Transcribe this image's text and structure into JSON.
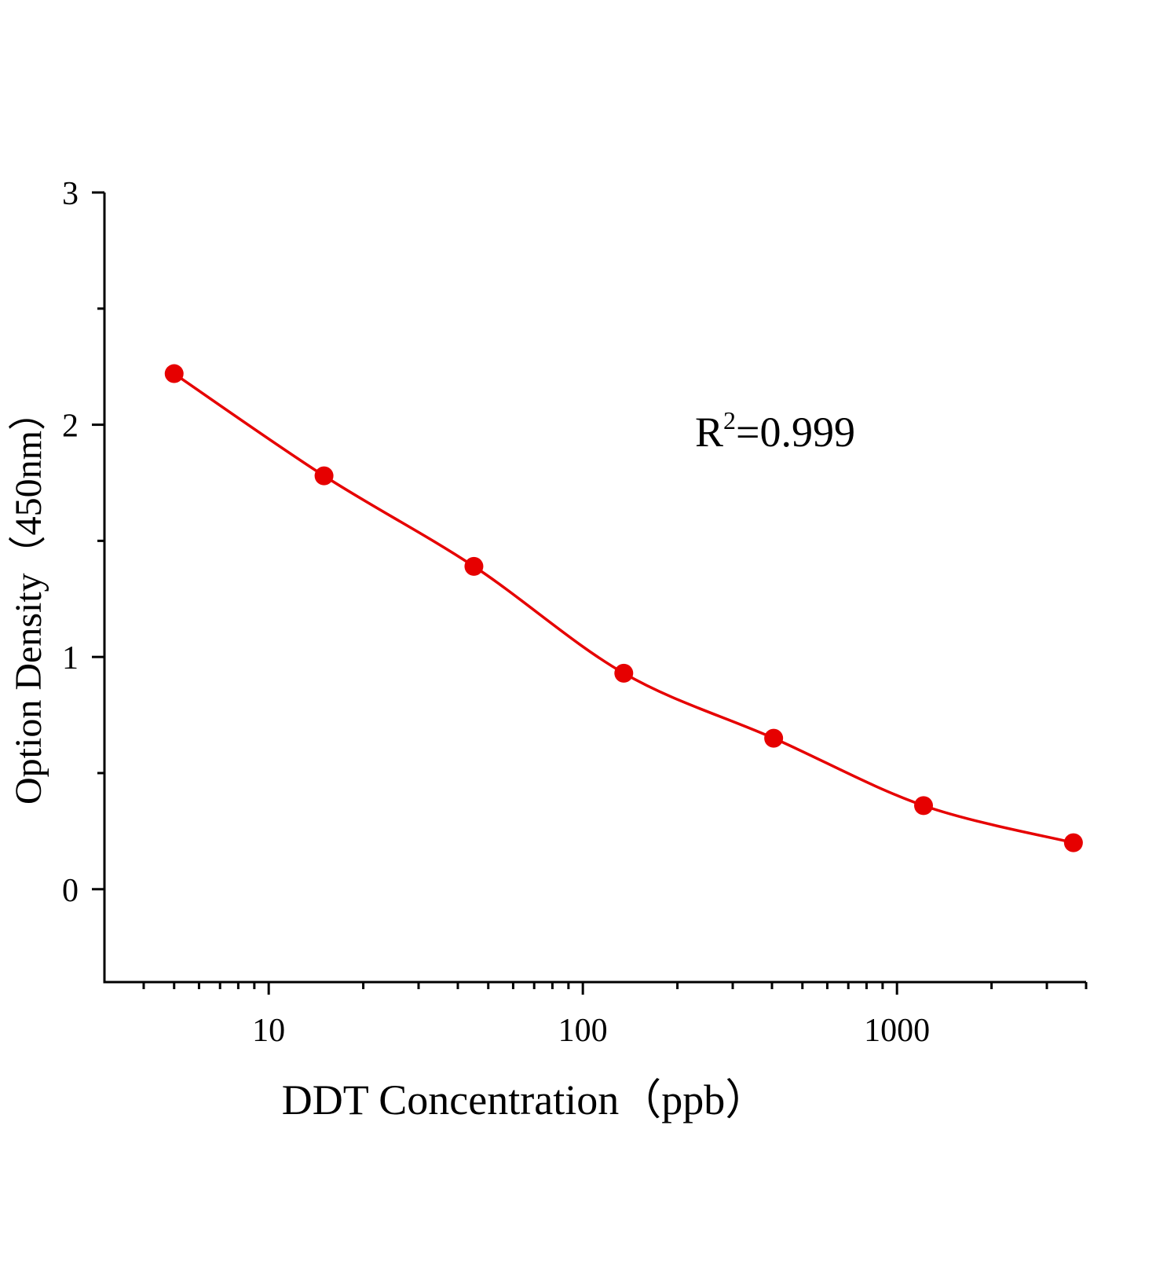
{
  "chart_data": {
    "type": "scatter",
    "x_label": "DDT Concentration（ppb）",
    "y_label": "Option Density（450nm）",
    "annotation": {
      "base": "R",
      "superscript": "2",
      "text": "=0.999"
    },
    "xscale": "log",
    "xlim": [
      3,
      4000
    ],
    "xticks": [
      10,
      100,
      1000
    ],
    "xminorticks": [
      4,
      5,
      6,
      7,
      8,
      9,
      20,
      30,
      40,
      50,
      60,
      70,
      80,
      90,
      200,
      300,
      400,
      500,
      600,
      700,
      800,
      900,
      2000,
      3000,
      4000
    ],
    "ylim": [
      -0.4,
      3
    ],
    "yticks": [
      0,
      1,
      2,
      3
    ],
    "yminorticks": [
      0.5,
      1.5,
      2.5
    ],
    "grid": false,
    "series": [
      {
        "color": "#e60000",
        "x": [
          5,
          15,
          45,
          135,
          405,
          1215,
          3645
        ],
        "values": [
          2.22,
          1.78,
          1.39,
          0.93,
          0.65,
          0.36,
          0.2
        ]
      }
    ]
  }
}
